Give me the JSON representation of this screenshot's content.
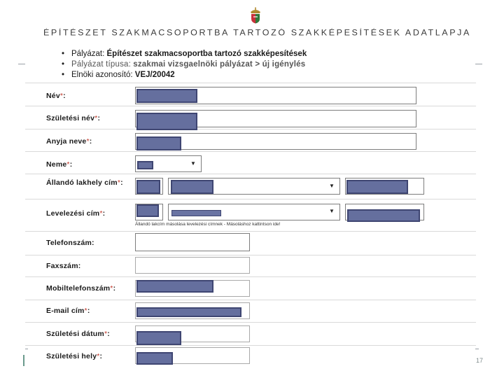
{
  "header": {
    "title": "ÉPÍTÉSZET SZAKMACSOPORTBA TARTOZÓ SZAKKÉPESÍTÉSEK ADATLAPJA",
    "crest_icon": "hungarian-coat-of-arms-icon"
  },
  "info": {
    "palyazat_label": "Pályázat:",
    "palyazat_value": "Építészet szakmacsoportba tartozó szakképesítések",
    "tipus_label": "Pályázat típusa:",
    "tipus_value": "szakmai vizsgaelnöki pályázat > új igénylés",
    "azonosito_label": "Elnöki azonosító:",
    "azonosito_value": "VEJ/20042"
  },
  "form": {
    "nev_label": "Név",
    "szuletesi_nev_label": "Születési név",
    "anyja_neve_label": "Anyja neve",
    "neme_label": "Neme",
    "allando_lakhely_label": "Állandó lakhely cím",
    "levelezesi_cim_label": "Levelezési cím",
    "copy_hint": "Állandó lakcím másolása levelezési címnek - Másoláshoz kattintson ide!",
    "telefonszam_label": "Telefonszám:",
    "faxszam_label": "Faxszám:",
    "mobil_label": "Mobiltelefonszám",
    "email_label": "E-mail cím",
    "szuletesi_datum_label": "Születési dátum",
    "szuletesi_hely_label": "Születési hely",
    "required_marker": "*",
    "colon": ":"
  },
  "footer": {
    "page_number": "17"
  },
  "colors": {
    "redaction_fill": "#656f9e",
    "redaction_border": "#3f4672",
    "required_star": "#c0392b"
  }
}
